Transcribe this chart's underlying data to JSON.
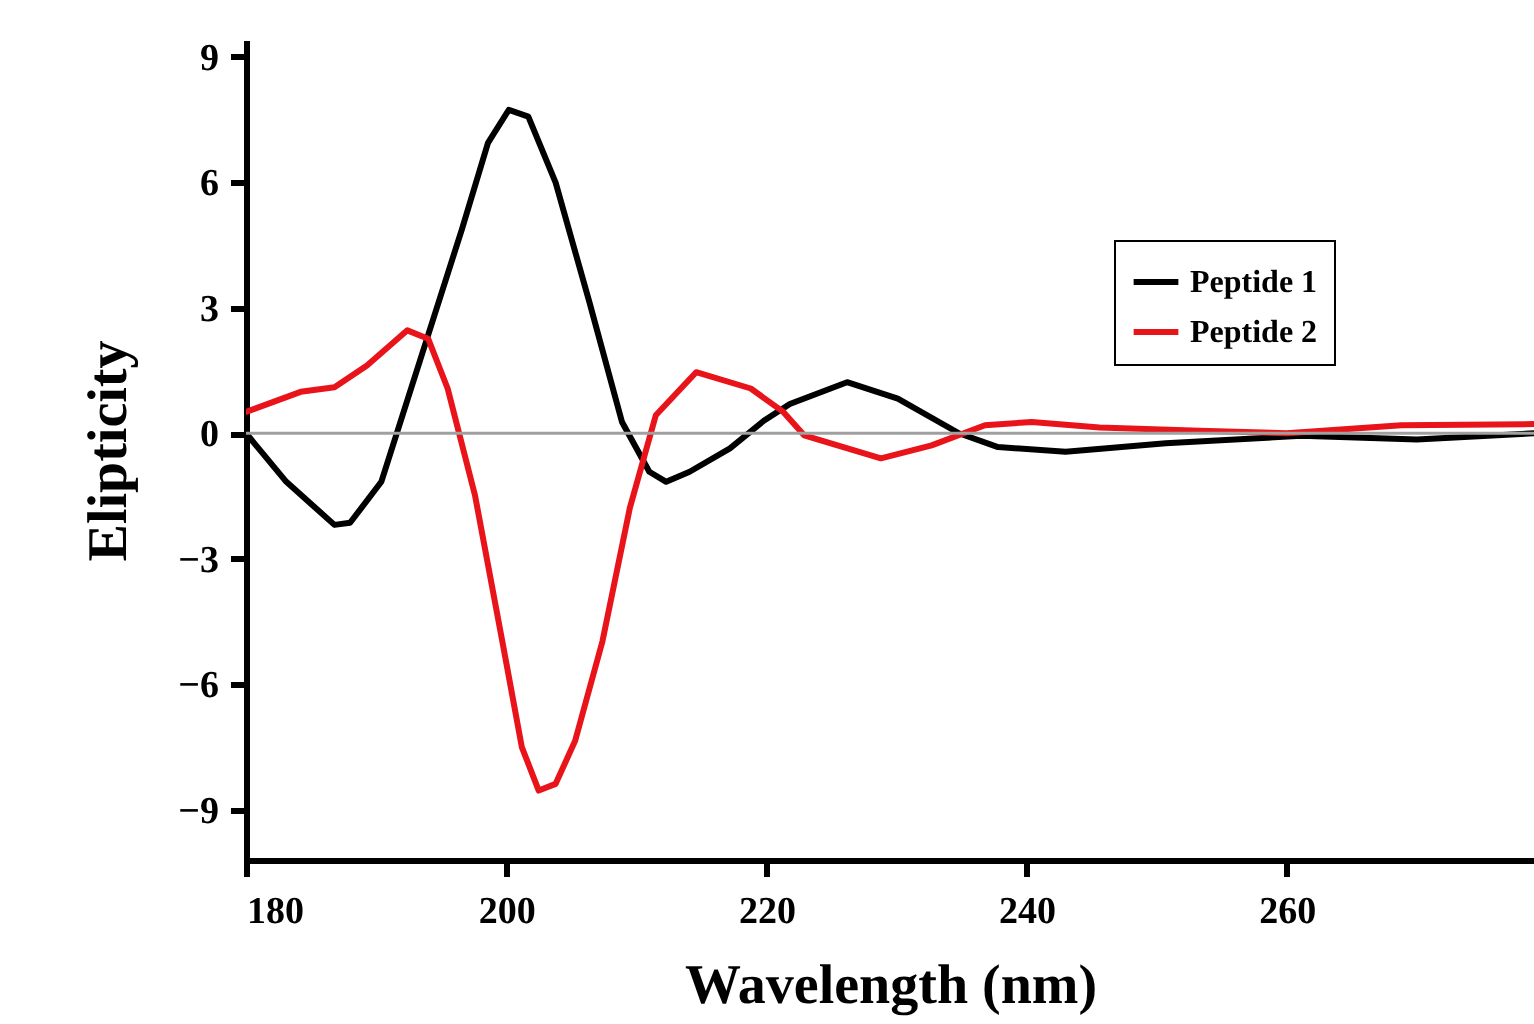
{
  "chart_data": {
    "type": "line",
    "xlabel": "Wavelength (nm)",
    "ylabel": "Elipticity",
    "xlim": [
      180,
      279
    ],
    "xticks": [
      180,
      200,
      220,
      240,
      260
    ],
    "ylim": [
      -10.2,
      9.4
    ],
    "yticks": [
      -9,
      -6,
      -3,
      0,
      3,
      6,
      9
    ],
    "grid": false,
    "legend": "top right",
    "line_style": "solid",
    "marker": "none",
    "ref_lines": [
      {
        "axis": "y",
        "value": 0,
        "color": "#a0a0a0"
      }
    ],
    "series": [
      {
        "name": "Peptide 1",
        "color": "#000000",
        "x": [
          180,
          183.1,
          186.8,
          188,
          190.4,
          193.5,
          196.6,
          198.6,
          200.2,
          201.7,
          203.8,
          206.4,
          208.9,
          211,
          212.3,
          214.1,
          217.2,
          219.8,
          221.8,
          226.2,
          230.1,
          234.8,
          237.8,
          243,
          250.7,
          261.1,
          270,
          279
        ],
        "values": [
          0,
          -1.16,
          -2.19,
          -2.14,
          -1.16,
          1.86,
          4.88,
          6.94,
          7.73,
          7.57,
          5.99,
          3.13,
          0.27,
          -0.92,
          -1.16,
          -0.92,
          -0.36,
          0.3,
          0.7,
          1.22,
          0.83,
          0,
          -0.33,
          -0.44,
          -0.24,
          -0.06,
          -0.15,
          0
        ]
      },
      {
        "name": "Peptide 2",
        "color": "#e8141a",
        "x": [
          180,
          184.2,
          186.8,
          189.3,
          192.4,
          194,
          195.5,
          197.6,
          199.7,
          201.2,
          202.5,
          203.8,
          205.3,
          207.4,
          209.5,
          211.5,
          214.6,
          218.8,
          221.3,
          222.9,
          228.8,
          232.7,
          236.8,
          240.4,
          245.6,
          253.3,
          260,
          268.8,
          279
        ],
        "values": [
          0.51,
          0.99,
          1.1,
          1.62,
          2.46,
          2.26,
          1.07,
          -1.48,
          -4.97,
          -7.5,
          -8.54,
          -8.38,
          -7.35,
          -4.97,
          -1.79,
          0.43,
          1.46,
          1.07,
          0.51,
          -0.05,
          -0.6,
          -0.29,
          0.19,
          0.27,
          0.14,
          0.06,
          0,
          0.19,
          0.22
        ]
      }
    ]
  }
}
